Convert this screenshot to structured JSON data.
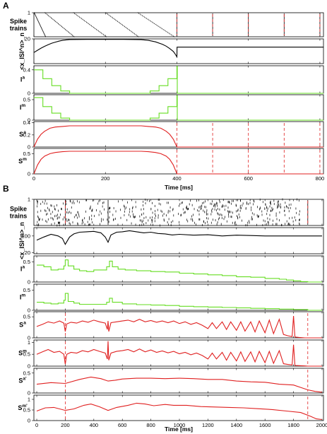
{
  "colors": {
    "black": "#000000",
    "green": "#66dd22",
    "red": "#e02020",
    "dashed_red": "#e02020"
  },
  "chart_data": [
    {
      "panel": "A",
      "type": "line",
      "xlabel": "Time [ms]",
      "xlim": [
        0,
        810
      ],
      "xticks": [
        0,
        200,
        400,
        600,
        800
      ],
      "xticklabels": [
        "0",
        "200",
        "400",
        "600",
        "800"
      ],
      "grid": false,
      "dashed_vlines": [
        0,
        400,
        500,
        600,
        700,
        800
      ],
      "subplots": [
        {
          "id": "A-spike",
          "ylabel": "Spike trains",
          "type": "raster",
          "ylim": [
            0,
            1
          ],
          "yticks": [
            1
          ],
          "yticklabels": [
            "1"
          ],
          "raster_staircases": [
            {
              "x0": 0,
              "x1": 32
            },
            {
              "x0": 30,
              "x1": 112
            },
            {
              "x0": 110,
              "x1": 202
            },
            {
              "x0": 200,
              "x1": 292
            },
            {
              "x0": 290,
              "x1": 392
            }
          ],
          "vertical_lines": [
            400,
            500,
            600,
            700,
            800
          ]
        },
        {
          "id": "A-isi",
          "ylabel": "<x_ISI^n>_n",
          "type": "line",
          "color": "#000000",
          "ylim": [
            0,
            20
          ],
          "yticks": [
            20
          ],
          "yticklabels": [
            "20"
          ],
          "x": [
            0,
            10,
            20,
            30,
            40,
            50,
            60,
            70,
            80,
            90,
            100,
            150,
            200,
            250,
            300,
            320,
            340,
            360,
            370,
            380,
            390,
            395,
            400,
            400.5,
            500,
            810
          ],
          "y": [
            9.0,
            10.8,
            12.5,
            14.0,
            15.3,
            16.5,
            17.4,
            18.2,
            18.8,
            19.2,
            19.5,
            19.6,
            19.6,
            19.6,
            19.4,
            18.8,
            17.6,
            15.6,
            14.1,
            12.2,
            9.8,
            7.9,
            5.4,
            13.3,
            13.3,
            13.3
          ]
        },
        {
          "id": "A-Ia",
          "ylabel": "I^a",
          "type": "step",
          "color": "#66dd22",
          "ylim": [
            0,
            0.47
          ],
          "yticks": [
            0,
            0.4
          ],
          "yticklabels": [
            "0",
            "0.4"
          ],
          "x": [
            0,
            25,
            50,
            75,
            100,
            300,
            325,
            350,
            375,
            400,
            401,
            810
          ],
          "y": [
            0.4,
            0.25,
            0.13,
            0.04,
            0.0,
            0.0,
            0.04,
            0.13,
            0.25,
            0.46,
            0.0,
            0.0
          ]
        },
        {
          "id": "A-Im",
          "ylabel": "I^m",
          "type": "step",
          "color": "#66dd22",
          "ylim": [
            0,
            0.62
          ],
          "yticks": [
            0,
            0.5
          ],
          "yticklabels": [
            "0",
            "0.5"
          ],
          "x": [
            0,
            25,
            50,
            75,
            100,
            300,
            325,
            350,
            375,
            400,
            401,
            810
          ],
          "y": [
            0.55,
            0.33,
            0.17,
            0.05,
            0.0,
            0.0,
            0.05,
            0.17,
            0.33,
            0.6,
            0.0,
            0.0
          ]
        },
        {
          "id": "A-Sa",
          "ylabel": "S^a",
          "type": "line",
          "color": "#e02020",
          "ylim": [
            0,
            0.42
          ],
          "yticks": [
            0,
            0.2,
            0.4
          ],
          "yticklabels": [
            "0",
            "0.2",
            "0.4"
          ],
          "x": [
            0,
            10,
            20,
            30,
            45,
            60,
            80,
            100,
            300,
            320,
            340,
            355,
            370,
            380,
            390,
            400,
            401,
            810
          ],
          "y": [
            0.0,
            0.13,
            0.21,
            0.26,
            0.31,
            0.33,
            0.34,
            0.35,
            0.35,
            0.34,
            0.33,
            0.31,
            0.26,
            0.21,
            0.13,
            0.0,
            0.0,
            0.0
          ]
        },
        {
          "id": "A-Sm",
          "ylabel": "S^m",
          "type": "line",
          "color": "#e02020",
          "ylim": [
            0,
            0.63
          ],
          "yticks": [
            0,
            0.5
          ],
          "yticklabels": [
            "0",
            "0.5"
          ],
          "x": [
            0,
            10,
            20,
            30,
            45,
            60,
            80,
            100,
            300,
            320,
            340,
            355,
            370,
            380,
            390,
            400,
            401,
            810
          ],
          "y": [
            0.0,
            0.22,
            0.36,
            0.44,
            0.5,
            0.53,
            0.55,
            0.56,
            0.56,
            0.55,
            0.53,
            0.5,
            0.44,
            0.36,
            0.22,
            0.0,
            0.0,
            0.0
          ]
        }
      ]
    },
    {
      "panel": "B",
      "type": "line",
      "xlabel": "Time [ms]",
      "xlim": [
        -20,
        2010
      ],
      "xticks": [
        0,
        200,
        400,
        600,
        800,
        1000,
        1200,
        1400,
        1600,
        1800,
        2000
      ],
      "xticklabels": [
        "0",
        "200",
        "400",
        "600",
        "800",
        "1000",
        "1200",
        "1400",
        "1600",
        "1800",
        "2000"
      ],
      "grid": false,
      "dashed_vlines": [
        200,
        1900
      ],
      "subplots": [
        {
          "id": "B-spike",
          "ylabel": "Spike trains",
          "type": "raster",
          "ylim": [
            0,
            1
          ],
          "yticks": [
            1
          ],
          "yticklabels": [
            "1"
          ],
          "vertical_lines": [
            200,
            500,
            1900
          ],
          "dense_until": 1850
        },
        {
          "id": "B-isi",
          "ylabel": "<x_ISI^n>_n",
          "type": "line",
          "color": "#000000",
          "ylim": [
            15,
            140
          ],
          "yticks": [
            20,
            100
          ],
          "yticklabels": [
            "20",
            "100"
          ],
          "x": [
            0,
            50,
            100,
            150,
            180,
            200,
            230,
            260,
            300,
            350,
            400,
            450,
            480,
            500,
            520,
            560,
            600,
            650,
            700,
            750,
            800,
            850,
            900,
            950,
            1000,
            1100,
            1200,
            1300,
            1400,
            1500,
            1600,
            1700,
            1800,
            1900,
            2000
          ],
          "y": [
            80,
            95,
            108,
            100,
            88,
            60,
            95,
            110,
            118,
            120,
            122,
            115,
            95,
            70,
            105,
            118,
            120,
            125,
            120,
            115,
            118,
            112,
            110,
            105,
            108,
            104,
            106,
            100,
            104,
            102,
            100,
            100,
            100,
            100,
            100
          ]
        },
        {
          "id": "B-Ia",
          "ylabel": "I^a",
          "type": "step",
          "color": "#66dd22",
          "ylim": [
            0,
            0.65
          ],
          "yticks": [
            0,
            0.5
          ],
          "yticklabels": [
            "0",
            "0.5"
          ],
          "x": [
            0,
            50,
            100,
            150,
            190,
            200,
            220,
            260,
            300,
            350,
            400,
            450,
            490,
            510,
            530,
            570,
            620,
            700,
            800,
            900,
            1000,
            1100,
            1200,
            1300,
            1400,
            1500,
            1600,
            1700,
            1750,
            1800,
            1850,
            1900,
            1950,
            2000
          ],
          "y": [
            0.42,
            0.38,
            0.3,
            0.32,
            0.4,
            0.55,
            0.4,
            0.32,
            0.28,
            0.26,
            0.3,
            0.3,
            0.38,
            0.52,
            0.38,
            0.32,
            0.3,
            0.28,
            0.26,
            0.25,
            0.22,
            0.2,
            0.18,
            0.16,
            0.13,
            0.12,
            0.09,
            0.07,
            0.05,
            0.03,
            0.01,
            0.0,
            0.0,
            0.0
          ]
        },
        {
          "id": "B-Im",
          "ylabel": "I^m",
          "type": "step",
          "color": "#66dd22",
          "ylim": [
            0,
            0.65
          ],
          "yticks": [
            0,
            0.5
          ],
          "yticklabels": [
            "0",
            "0.5"
          ],
          "x": [
            0,
            50,
            100,
            150,
            190,
            200,
            220,
            260,
            300,
            400,
            490,
            510,
            530,
            600,
            700,
            800,
            900,
            1000,
            1100,
            1200,
            1300,
            1400,
            1500,
            1600,
            1700,
            1800,
            1900,
            2000
          ],
          "y": [
            0.2,
            0.18,
            0.16,
            0.18,
            0.25,
            0.42,
            0.22,
            0.18,
            0.15,
            0.15,
            0.2,
            0.3,
            0.2,
            0.16,
            0.14,
            0.13,
            0.12,
            0.1,
            0.09,
            0.08,
            0.07,
            0.06,
            0.05,
            0.04,
            0.03,
            0.02,
            0.0,
            0.0
          ]
        },
        {
          "id": "B-Sa",
          "ylabel": "S^a",
          "type": "line",
          "color": "#e02020",
          "ylim": [
            0,
            0.62
          ],
          "yticks": [
            0,
            0.5
          ],
          "yticklabels": [
            "0",
            "0.5"
          ],
          "x": [
            0,
            40,
            80,
            120,
            160,
            190,
            200,
            210,
            240,
            280,
            320,
            360,
            400,
            440,
            480,
            495,
            500,
            505,
            520,
            560,
            600,
            640,
            680,
            720,
            760,
            800,
            840,
            880,
            920,
            960,
            1000,
            1040,
            1080,
            1120,
            1160,
            1200,
            1230,
            1260,
            1300,
            1330,
            1360,
            1400,
            1430,
            1460,
            1500,
            1530,
            1560,
            1600,
            1630,
            1660,
            1700,
            1730,
            1760,
            1790,
            1800,
            1810,
            1840,
            1880,
            1900,
            1950,
            2000
          ],
          "y": [
            0.27,
            0.32,
            0.38,
            0.35,
            0.4,
            0.35,
            0.15,
            0.33,
            0.37,
            0.35,
            0.4,
            0.37,
            0.42,
            0.38,
            0.35,
            0.2,
            0.4,
            0.15,
            0.36,
            0.38,
            0.4,
            0.42,
            0.38,
            0.44,
            0.38,
            0.41,
            0.37,
            0.4,
            0.36,
            0.4,
            0.34,
            0.38,
            0.32,
            0.36,
            0.3,
            0.22,
            0.36,
            0.22,
            0.38,
            0.2,
            0.38,
            0.18,
            0.38,
            0.16,
            0.38,
            0.14,
            0.4,
            0.12,
            0.42,
            0.1,
            0.44,
            0.08,
            0.05,
            0.03,
            0.52,
            0.02,
            0.01,
            0.0,
            0.0,
            0.0,
            0.0
          ]
        },
        {
          "id": "B-Sm",
          "ylabel": "S^m",
          "type": "line",
          "color": "#e02020",
          "ylim": [
            0,
            1.1
          ],
          "yticks": [
            0,
            0.5,
            1
          ],
          "yticklabels": [
            "0",
            "0.5",
            "1"
          ],
          "x": [
            0,
            40,
            80,
            120,
            160,
            190,
            200,
            210,
            240,
            280,
            320,
            360,
            400,
            440,
            480,
            495,
            500,
            505,
            520,
            560,
            600,
            640,
            680,
            720,
            760,
            800,
            840,
            880,
            920,
            960,
            1000,
            1040,
            1080,
            1120,
            1160,
            1200,
            1230,
            1260,
            1300,
            1330,
            1360,
            1400,
            1430,
            1460,
            1500,
            1530,
            1560,
            1600,
            1630,
            1660,
            1700,
            1730,
            1760,
            1790,
            1800,
            1810,
            1840,
            1880,
            1900,
            1950,
            2000
          ],
          "y": [
            0.5,
            0.6,
            0.7,
            0.58,
            0.62,
            0.5,
            0.08,
            0.5,
            0.58,
            0.55,
            0.65,
            0.6,
            0.7,
            0.62,
            0.55,
            0.3,
            1.05,
            0.25,
            0.55,
            0.62,
            0.65,
            0.7,
            0.6,
            0.72,
            0.6,
            0.68,
            0.58,
            0.64,
            0.56,
            0.62,
            0.52,
            0.58,
            0.48,
            0.55,
            0.45,
            0.3,
            0.55,
            0.3,
            0.58,
            0.25,
            0.58,
            0.22,
            0.6,
            0.2,
            0.6,
            0.18,
            0.62,
            0.15,
            0.62,
            0.12,
            0.65,
            0.1,
            0.07,
            0.05,
            0.9,
            0.03,
            0.02,
            0.01,
            0.0,
            0.0,
            0.0
          ]
        },
        {
          "id": "B-Sa2",
          "ylabel": "S^a*",
          "type": "line",
          "color": "#e02020",
          "ylim": [
            0,
            0.62
          ],
          "yticks": [
            0,
            0.5
          ],
          "yticklabels": [
            "0",
            "0.5"
          ],
          "x": [
            0,
            100,
            200,
            300,
            380,
            450,
            500,
            550,
            600,
            700,
            800,
            900,
            1000,
            1100,
            1200,
            1300,
            1400,
            1500,
            1600,
            1700,
            1800,
            1850,
            1900,
            1950,
            2000
          ],
          "y": [
            0.22,
            0.26,
            0.24,
            0.34,
            0.4,
            0.36,
            0.3,
            0.32,
            0.35,
            0.37,
            0.37,
            0.36,
            0.37,
            0.36,
            0.34,
            0.34,
            0.3,
            0.28,
            0.27,
            0.22,
            0.2,
            0.14,
            0.08,
            0.04,
            0.02
          ]
        },
        {
          "id": "B-Sm2",
          "ylabel": "S^m*",
          "type": "line",
          "color": "#e02020",
          "ylim": [
            0,
            1.2
          ],
          "yticks": [
            0,
            0.5,
            1
          ],
          "yticklabels": [
            "0",
            "0.5",
            "1"
          ],
          "x": [
            0,
            60,
            120,
            200,
            260,
            330,
            380,
            440,
            500,
            560,
            640,
            700,
            760,
            820,
            900,
            960,
            1050,
            1150,
            1250,
            1350,
            1450,
            1550,
            1650,
            1750,
            1850,
            1920,
            1960,
            2000
          ],
          "y": [
            0.45,
            0.6,
            0.62,
            0.48,
            0.55,
            0.72,
            0.78,
            0.65,
            0.48,
            0.62,
            0.72,
            0.82,
            0.78,
            0.7,
            0.76,
            0.72,
            0.72,
            0.66,
            0.64,
            0.62,
            0.6,
            0.56,
            0.52,
            0.45,
            0.38,
            0.2,
            0.08,
            0.05
          ]
        }
      ]
    }
  ]
}
